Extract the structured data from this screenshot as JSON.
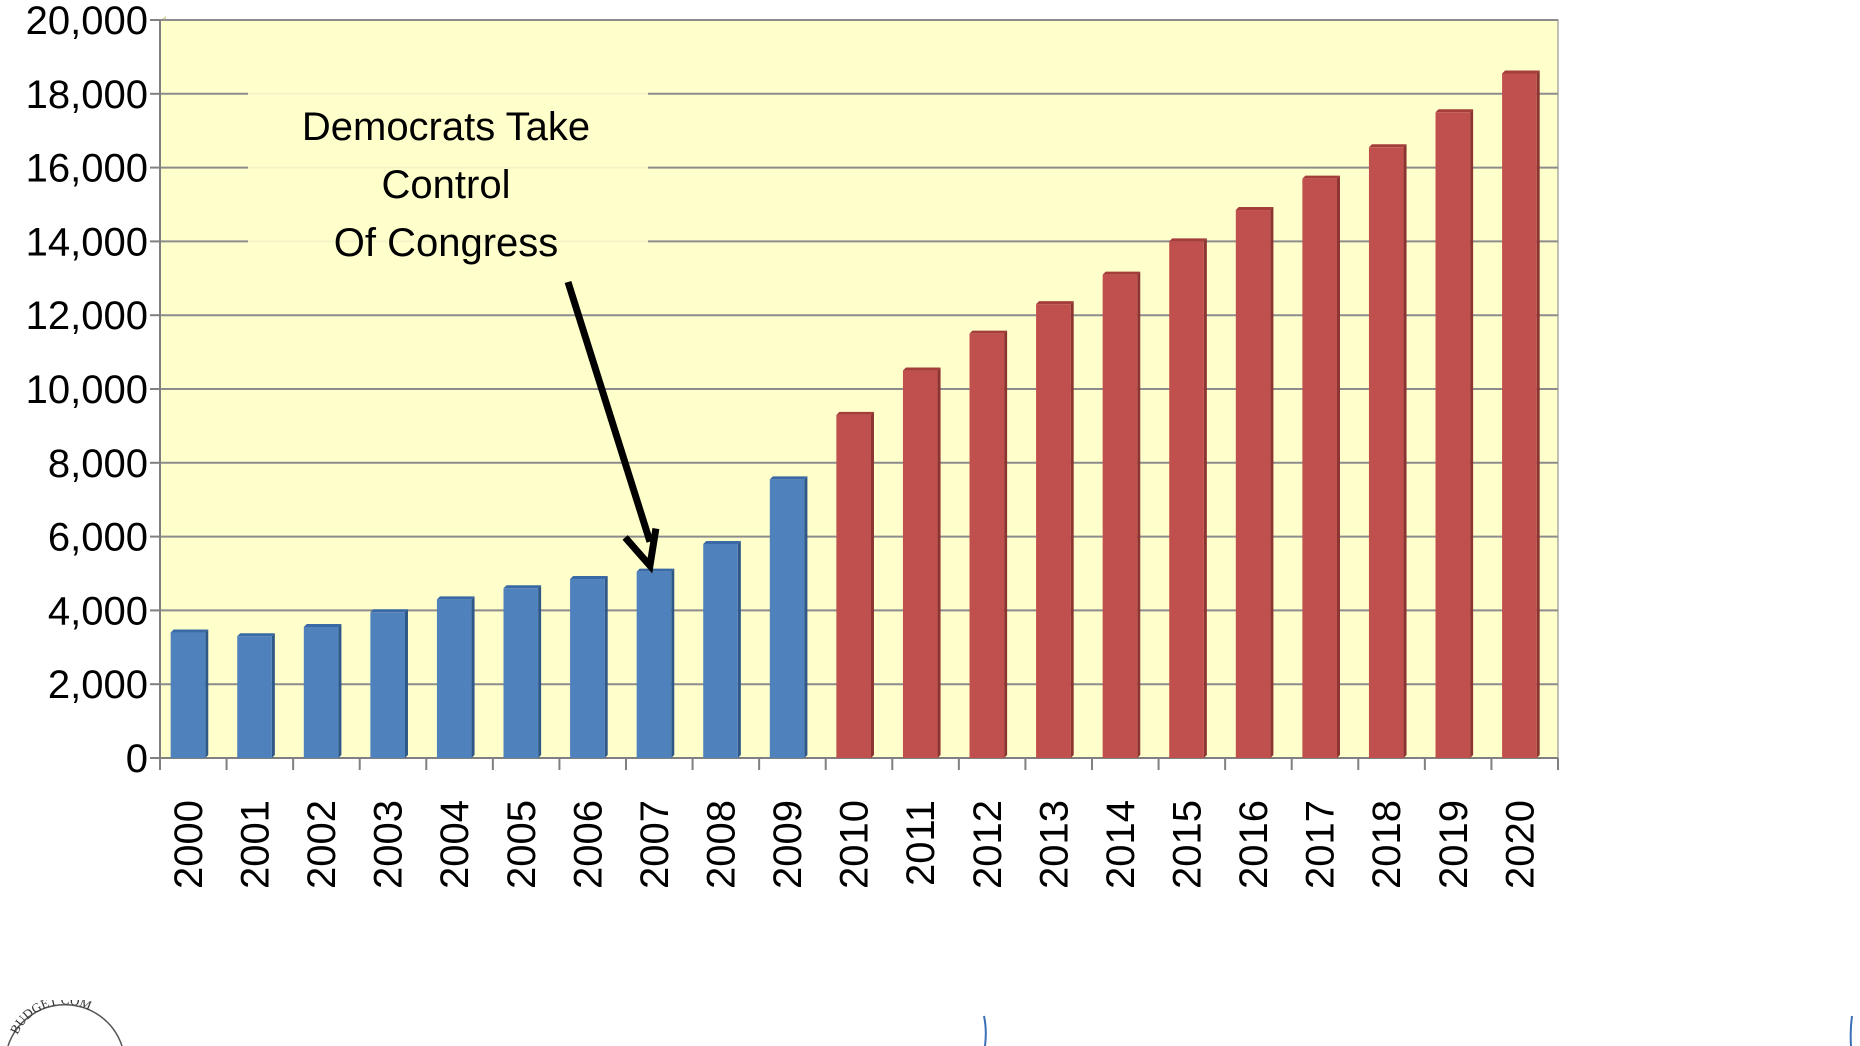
{
  "chart_data": {
    "type": "bar",
    "title": "",
    "xlabel": "",
    "ylabel": "",
    "categories": [
      "2000",
      "2001",
      "2002",
      "2003",
      "2004",
      "2005",
      "2006",
      "2007",
      "2008",
      "2009",
      "2010",
      "2011",
      "2012",
      "2013",
      "2014",
      "2015",
      "2016",
      "2017",
      "2018",
      "2019",
      "2020"
    ],
    "series": [
      {
        "color": "#4F81BD",
        "values": [
          3400,
          3300,
          3550,
          3950,
          4300,
          4600,
          4850,
          5050,
          5800,
          7550,
          null,
          null,
          null,
          null,
          null,
          null,
          null,
          null,
          null,
          null,
          null
        ]
      },
      {
        "color": "#C0504D",
        "values": [
          null,
          null,
          null,
          null,
          null,
          null,
          null,
          null,
          null,
          null,
          9300,
          10500,
          11500,
          12300,
          13100,
          14000,
          14850,
          15700,
          16550,
          17500,
          18550
        ]
      }
    ],
    "ylim": [
      0,
      20000
    ],
    "yticks": [
      0,
      2000,
      4000,
      6000,
      8000,
      10000,
      12000,
      14000,
      16000,
      18000,
      20000
    ],
    "ytick_labels": [
      "0",
      "2,000",
      "4,000",
      "6,000",
      "8,000",
      "10,000",
      "12,000",
      "14,000",
      "16,000",
      "18,000",
      "20,000"
    ],
    "grid": true,
    "plot_background": "#FFFFCC",
    "annotation": {
      "lines": [
        "Democrats Take",
        "Control",
        "Of Congress"
      ],
      "points_to": "2007"
    }
  },
  "seal": {
    "text": "BUDGET COM"
  }
}
